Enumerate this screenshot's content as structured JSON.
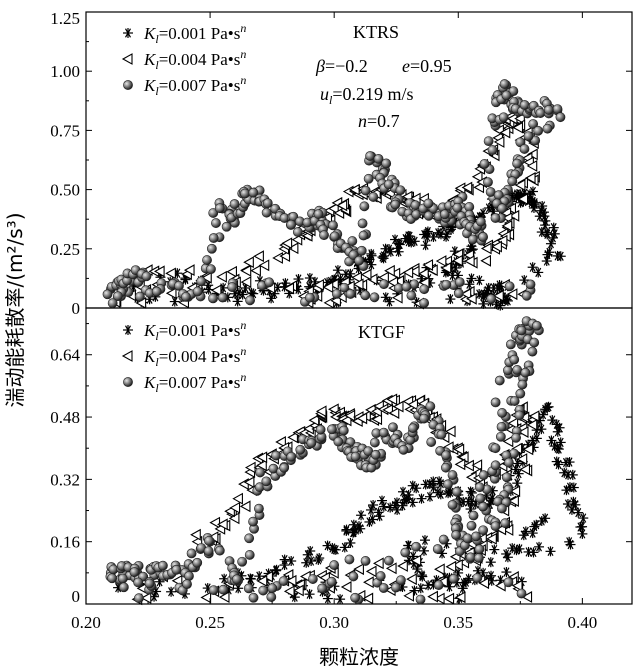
{
  "chart_data": {
    "type": "scatter",
    "xlabel": "颗粒浓度",
    "ylabel": "湍动能耗散率/(m²/s³)",
    "xlim": [
      0.2,
      0.42
    ],
    "xticks": [
      "0.20",
      "0.25",
      "0.30",
      "0.35",
      "0.40"
    ],
    "legend": [
      {
        "prefix": "K",
        "sub": "l",
        "value": "=0.001 Pa•s",
        "sup": "n",
        "marker": "asterisk"
      },
      {
        "prefix": "K",
        "sub": "l",
        "value": "=0.004 Pa•s",
        "sup": "n",
        "marker": "triangle-left"
      },
      {
        "prefix": "K",
        "sub": "l",
        "value": "=0.007 Pa•s",
        "sup": "n",
        "marker": "sphere"
      }
    ],
    "panels": [
      {
        "label": "KTRS",
        "ylim": [
          0,
          1.25
        ],
        "yticks": [
          "1.25",
          "1.00",
          "0.75",
          "0.50",
          "0.25",
          "0"
        ],
        "ytick_values": [
          1.25,
          1.0,
          0.75,
          0.5,
          0.25,
          0
        ],
        "params": [
          {
            "sym": "β",
            "text": "=−0.2"
          },
          {
            "sym": "e",
            "text": "=0.95"
          },
          {
            "sym": "u",
            "sub": "l",
            "text": "=0.219 m/s"
          },
          {
            "sym": "n",
            "text": "=0.7"
          }
        ],
        "series": [
          {
            "name": "K_l=0.001 Pa•s^n",
            "marker": "asterisk",
            "points": [
              [
                0.23,
                0.13
              ],
              [
                0.26,
                0.06
              ],
              [
                0.28,
                0.09
              ],
              [
                0.3,
                0.12
              ],
              [
                0.31,
                0.18
              ],
              [
                0.32,
                0.22
              ],
              [
                0.33,
                0.28
              ],
              [
                0.34,
                0.3
              ],
              [
                0.35,
                0.36
              ],
              [
                0.36,
                0.4
              ],
              [
                0.37,
                0.46
              ],
              [
                0.375,
                0.48
              ],
              [
                0.38,
                0.45
              ],
              [
                0.385,
                0.35
              ],
              [
                0.39,
                0.22
              ],
              [
                0.36,
                0.05
              ],
              [
                0.37,
                0.03
              ],
              [
                0.345,
                0.15
              ],
              [
                0.355,
                0.25
              ],
              [
                0.33,
                0.1
              ]
            ]
          },
          {
            "name": "K_l=0.004 Pa•s^n",
            "marker": "triangle-left",
            "points": [
              [
                0.225,
                0.16
              ],
              [
                0.26,
                0.12
              ],
              [
                0.28,
                0.25
              ],
              [
                0.29,
                0.35
              ],
              [
                0.3,
                0.42
              ],
              [
                0.31,
                0.48
              ],
              [
                0.32,
                0.5
              ],
              [
                0.33,
                0.45
              ],
              [
                0.34,
                0.4
              ],
              [
                0.35,
                0.45
              ],
              [
                0.36,
                0.6
              ],
              [
                0.37,
                0.78
              ],
              [
                0.375,
                0.8
              ],
              [
                0.38,
                0.6
              ],
              [
                0.37,
                0.38
              ],
              [
                0.365,
                0.25
              ],
              [
                0.35,
                0.2
              ],
              [
                0.33,
                0.15
              ],
              [
                0.31,
                0.1
              ],
              [
                0.29,
                0.07
              ]
            ]
          },
          {
            "name": "K_l=0.007 Pa•s^n",
            "marker": "sphere",
            "points": [
              [
                0.21,
                0.08
              ],
              [
                0.215,
                0.08
              ],
              [
                0.22,
                0.16
              ],
              [
                0.23,
                0.08
              ],
              [
                0.245,
                0.07
              ],
              [
                0.255,
                0.42
              ],
              [
                0.26,
                0.36
              ],
              [
                0.265,
                0.5
              ],
              [
                0.27,
                0.45
              ],
              [
                0.28,
                0.38
              ],
              [
                0.29,
                0.34
              ],
              [
                0.295,
                0.4
              ],
              [
                0.3,
                0.3
              ],
              [
                0.305,
                0.25
              ],
              [
                0.31,
                0.2
              ],
              [
                0.315,
                0.64
              ],
              [
                0.32,
                0.57
              ],
              [
                0.325,
                0.46
              ],
              [
                0.33,
                0.4
              ],
              [
                0.34,
                0.42
              ],
              [
                0.345,
                0.38
              ],
              [
                0.35,
                0.45
              ],
              [
                0.355,
                0.35
              ],
              [
                0.36,
                0.3
              ],
              [
                0.365,
                0.77
              ],
              [
                0.368,
                0.93
              ],
              [
                0.372,
                0.84
              ],
              [
                0.38,
                0.85
              ],
              [
                0.39,
                0.84
              ],
              [
                0.375,
                0.7
              ],
              [
                0.37,
                0.5
              ],
              [
                0.365,
                0.38
              ]
            ]
          }
        ]
      },
      {
        "label": "KTGF",
        "ylim": [
          0,
          0.76
        ],
        "yticks": [
          "0.64",
          "0.48",
          "0.32",
          "0.16",
          "0"
        ],
        "ytick_values": [
          0.64,
          0.48,
          0.32,
          0.16,
          0
        ],
        "series": [
          {
            "name": "K_l=0.001 Pa•s^n",
            "marker": "asterisk",
            "points": [
              [
                0.26,
                0.06
              ],
              [
                0.28,
                0.1
              ],
              [
                0.3,
                0.14
              ],
              [
                0.31,
                0.2
              ],
              [
                0.32,
                0.25
              ],
              [
                0.33,
                0.28
              ],
              [
                0.34,
                0.3
              ],
              [
                0.35,
                0.28
              ],
              [
                0.36,
                0.25
              ],
              [
                0.37,
                0.3
              ],
              [
                0.38,
                0.42
              ],
              [
                0.385,
                0.5
              ],
              [
                0.39,
                0.4
              ],
              [
                0.395,
                0.3
              ],
              [
                0.4,
                0.18
              ],
              [
                0.36,
                0.08
              ],
              [
                0.34,
                0.05
              ],
              [
                0.33,
                0.15
              ],
              [
                0.37,
                0.12
              ],
              [
                0.385,
                0.22
              ]
            ]
          },
          {
            "name": "K_l=0.004 Pa•s^n",
            "marker": "triangle-left",
            "points": [
              [
                0.245,
                0.16
              ],
              [
                0.26,
                0.22
              ],
              [
                0.27,
                0.35
              ],
              [
                0.28,
                0.4
              ],
              [
                0.29,
                0.45
              ],
              [
                0.3,
                0.5
              ],
              [
                0.31,
                0.48
              ],
              [
                0.32,
                0.5
              ],
              [
                0.33,
                0.52
              ],
              [
                0.34,
                0.48
              ],
              [
                0.35,
                0.4
              ],
              [
                0.36,
                0.3
              ],
              [
                0.37,
                0.36
              ],
              [
                0.375,
                0.5
              ],
              [
                0.38,
                0.46
              ],
              [
                0.37,
                0.2
              ],
              [
                0.36,
                0.15
              ],
              [
                0.35,
                0.1
              ],
              [
                0.3,
                0.08
              ],
              [
                0.28,
                0.06
              ]
            ]
          },
          {
            "name": "K_l=0.007 Pa•s^n",
            "marker": "sphere",
            "points": [
              [
                0.21,
                0.08
              ],
              [
                0.215,
                0.08
              ],
              [
                0.22,
                0.08
              ],
              [
                0.23,
                0.08
              ],
              [
                0.24,
                0.08
              ],
              [
                0.25,
                0.16
              ],
              [
                0.26,
                0.06
              ],
              [
                0.27,
                0.3
              ],
              [
                0.28,
                0.38
              ],
              [
                0.29,
                0.42
              ],
              [
                0.3,
                0.45
              ],
              [
                0.305,
                0.4
              ],
              [
                0.31,
                0.38
              ],
              [
                0.315,
                0.35
              ],
              [
                0.32,
                0.44
              ],
              [
                0.33,
                0.4
              ],
              [
                0.335,
                0.5
              ],
              [
                0.34,
                0.46
              ],
              [
                0.345,
                0.35
              ],
              [
                0.35,
                0.2
              ],
              [
                0.355,
                0.12
              ],
              [
                0.36,
                0.25
              ],
              [
                0.365,
                0.4
              ],
              [
                0.37,
                0.6
              ],
              [
                0.375,
                0.68
              ],
              [
                0.38,
                0.72
              ],
              [
                0.375,
                0.54
              ],
              [
                0.37,
                0.3
              ],
              [
                0.365,
                0.2
              ],
              [
                0.3,
                0.1
              ]
            ]
          }
        ]
      }
    ]
  }
}
